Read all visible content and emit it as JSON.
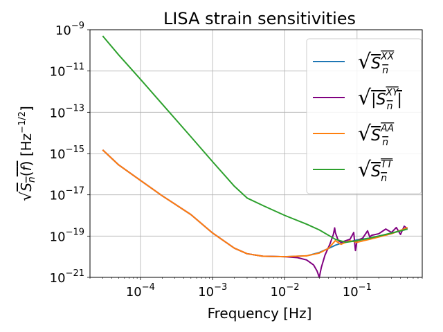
{
  "chart_data": {
    "type": "line",
    "title": "LISA strain sensitivities",
    "xlabel": "Frequency [Hz]",
    "ylabel": "√S_n(f) [Hz^−1/2]",
    "xscale": "log",
    "yscale": "log",
    "xlim": [
      2e-05,
      0.8
    ],
    "ylim": [
      1e-21,
      1e-09
    ],
    "grid": true,
    "legend_position": "top-right",
    "x_ticks": [
      {
        "value": 0.0001,
        "base": "10",
        "exp": "−4"
      },
      {
        "value": 0.001,
        "base": "10",
        "exp": "−3"
      },
      {
        "value": 0.01,
        "base": "10",
        "exp": "−2"
      },
      {
        "value": 0.1,
        "base": "10",
        "exp": "−1"
      }
    ],
    "y_ticks": [
      {
        "value": 1e-09,
        "base": "10",
        "exp": "−9"
      },
      {
        "value": 1e-11,
        "base": "10",
        "exp": "−11"
      },
      {
        "value": 1e-13,
        "base": "10",
        "exp": "−13"
      },
      {
        "value": 1e-15,
        "base": "10",
        "exp": "−15"
      },
      {
        "value": 1e-17,
        "base": "10",
        "exp": "−17"
      },
      {
        "value": 1e-19,
        "base": "10",
        "exp": "−19"
      },
      {
        "value": 1e-21,
        "base": "10",
        "exp": "−21"
      }
    ],
    "series": [
      {
        "name": "√S_n^XX",
        "legend_sub": "n",
        "legend_sup": "XX",
        "abs": false,
        "color": "#1f77b4",
        "x": [
          3e-05,
          5e-05,
          0.0001,
          0.0002,
          0.0005,
          0.001,
          0.002,
          0.003,
          0.005,
          0.01,
          0.02,
          0.03,
          0.04,
          0.05,
          0.06,
          0.08,
          0.1,
          0.15,
          0.2,
          0.3,
          0.4,
          0.5
        ],
        "y": [
          1.5e-15,
          2.8e-16,
          5e-17,
          9e-18,
          1.1e-18,
          1.4e-19,
          2.6e-20,
          1.4e-20,
          1.05e-20,
          1e-20,
          1.1e-20,
          1.6e-20,
          2.5e-20,
          3.6e-20,
          4.5e-20,
          5.5e-20,
          6.5e-20,
          8e-20,
          1e-19,
          1.4e-19,
          1.8e-19,
          2.2e-19
        ]
      },
      {
        "name": "√|S_n^XY|",
        "legend_sub": "n",
        "legend_sup": "XY",
        "abs": true,
        "color": "#800080",
        "x": [
          3e-05,
          5e-05,
          0.0001,
          0.0002,
          0.0005,
          0.001,
          0.002,
          0.003,
          0.005,
          0.01,
          0.015,
          0.02,
          0.025,
          0.028,
          0.03,
          0.032,
          0.036,
          0.042,
          0.047,
          0.049,
          0.05,
          0.055,
          0.06,
          0.07,
          0.08,
          0.09,
          0.095,
          0.1,
          0.12,
          0.14,
          0.15,
          0.16,
          0.2,
          0.25,
          0.3,
          0.35,
          0.4,
          0.45,
          0.5
        ],
        "y": [
          1.5e-15,
          2.8e-16,
          5e-17,
          9e-18,
          1.1e-18,
          1.4e-19,
          2.6e-20,
          1.4e-20,
          1.05e-20,
          1e-20,
          9e-21,
          7e-21,
          4e-21,
          2e-21,
          1e-21,
          3e-21,
          1.2e-20,
          4e-20,
          1.2e-19,
          2.5e-19,
          1.5e-19,
          6e-20,
          5e-20,
          6e-20,
          7e-20,
          1.5e-19,
          2e-20,
          6e-20,
          8e-20,
          1.8e-19,
          9e-20,
          1.1e-19,
          1.3e-19,
          2.2e-19,
          1.5e-19,
          2.6e-19,
          1.2e-19,
          3e-19,
          2.3e-19
        ]
      },
      {
        "name": "√S_n^AA",
        "legend_sub": "n",
        "legend_sup": "AA",
        "abs": false,
        "color": "#ff7f0e",
        "x": [
          3e-05,
          5e-05,
          0.0001,
          0.0002,
          0.0005,
          0.001,
          0.002,
          0.003,
          0.005,
          0.01,
          0.02,
          0.03,
          0.04,
          0.05,
          0.06,
          0.07,
          0.08,
          0.1,
          0.15,
          0.2,
          0.3,
          0.4,
          0.5
        ],
        "y": [
          1.5e-15,
          2.8e-16,
          5e-17,
          9e-18,
          1.1e-18,
          1.4e-19,
          2.6e-20,
          1.4e-20,
          1.05e-20,
          1e-20,
          1.1e-20,
          1.5e-20,
          2.5e-20,
          6e-20,
          4e-20,
          5e-20,
          6e-20,
          5e-20,
          7e-20,
          9e-20,
          1.3e-19,
          1.9e-19,
          2.6e-19
        ]
      },
      {
        "name": "√S_n^TT",
        "legend_sub": "n",
        "legend_sup": "TT",
        "abs": false,
        "color": "#2ca02c",
        "x": [
          3e-05,
          5e-05,
          0.0001,
          0.0002,
          0.0005,
          0.001,
          0.002,
          0.003,
          0.005,
          0.01,
          0.02,
          0.03,
          0.05,
          0.07,
          0.1,
          0.15,
          0.2,
          0.3,
          0.4,
          0.5
        ],
        "y": [
          5e-10,
          6e-11,
          4e-12,
          2.5e-13,
          6.5e-15,
          4e-16,
          2.6e-17,
          7e-18,
          3e-18,
          1e-18,
          3.8e-19,
          2e-19,
          7e-20,
          5e-20,
          6e-20,
          8e-20,
          1e-19,
          1.4e-19,
          1.8e-19,
          2.2e-19
        ]
      }
    ]
  }
}
